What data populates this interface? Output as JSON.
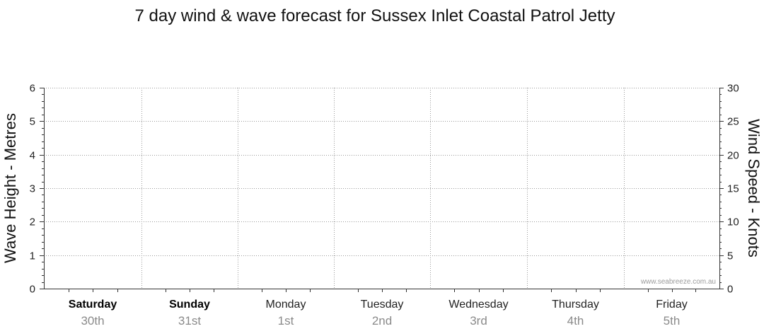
{
  "chart_data": {
    "type": "line",
    "title": "7 day wind & wave forecast for Sussex Inlet Coastal Patrol Jetty",
    "ylabel": "Wave Height - Metres",
    "ylabel_right": "Wind Speed - Knots",
    "ylim": [
      0,
      6
    ],
    "ylim_right": [
      0,
      30
    ],
    "yticks": [
      "0",
      "1",
      "2",
      "3",
      "4",
      "5",
      "6"
    ],
    "yticks_right": [
      "0",
      "5",
      "10",
      "15",
      "20",
      "25",
      "30"
    ],
    "days": [
      {
        "name": "Saturday",
        "date": "30th",
        "bold": true
      },
      {
        "name": "Sunday",
        "date": "31st",
        "bold": true
      },
      {
        "name": "Monday",
        "date": "1st",
        "bold": false
      },
      {
        "name": "Tuesday",
        "date": "2nd",
        "bold": false
      },
      {
        "name": "Wednesday",
        "date": "3rd",
        "bold": false
      },
      {
        "name": "Thursday",
        "date": "4th",
        "bold": false
      },
      {
        "name": "Friday",
        "date": "5th",
        "bold": false
      }
    ],
    "series": [],
    "grid": true,
    "credit": "www.seabreeze.com.au"
  }
}
